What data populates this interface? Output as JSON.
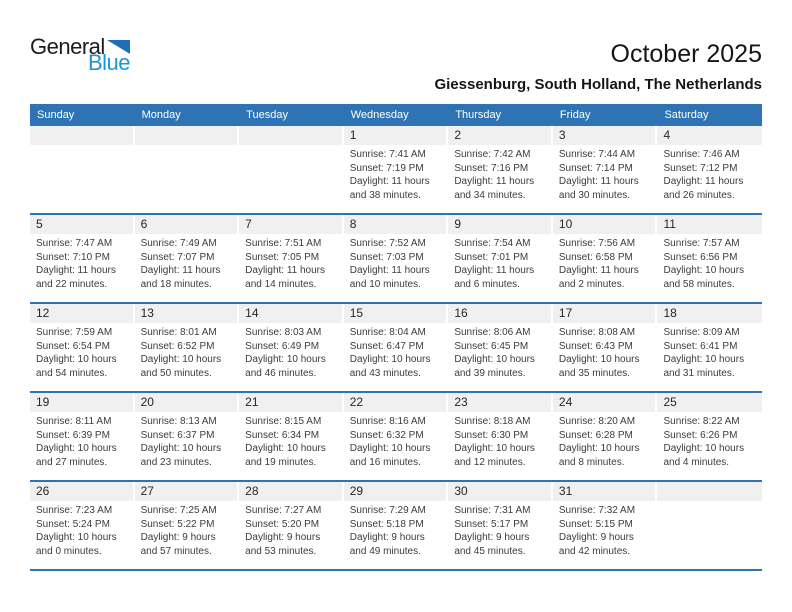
{
  "logo": {
    "part1": "General",
    "part2": "Blue"
  },
  "header": {
    "title": "October 2025",
    "subtitle": "Giessenburg, South Holland, The Netherlands"
  },
  "colors": {
    "header_blue": "#2E74B5",
    "row_border_blue": "#2E74B5",
    "band_gray": "#F0F0F0",
    "logo_blue": "#2095D3",
    "logo_triangle_blue": "#1F6FB5",
    "text_dark": "#3C3C3C"
  },
  "calendar": {
    "weekdays": [
      "Sunday",
      "Monday",
      "Tuesday",
      "Wednesday",
      "Thursday",
      "Friday",
      "Saturday"
    ],
    "weeks": [
      [
        {},
        {},
        {},
        {
          "day": "1",
          "lines": [
            "Sunrise: 7:41 AM",
            "Sunset: 7:19 PM",
            "Daylight: 11 hours",
            "and 38 minutes."
          ]
        },
        {
          "day": "2",
          "lines": [
            "Sunrise: 7:42 AM",
            "Sunset: 7:16 PM",
            "Daylight: 11 hours",
            "and 34 minutes."
          ]
        },
        {
          "day": "3",
          "lines": [
            "Sunrise: 7:44 AM",
            "Sunset: 7:14 PM",
            "Daylight: 11 hours",
            "and 30 minutes."
          ]
        },
        {
          "day": "4",
          "lines": [
            "Sunrise: 7:46 AM",
            "Sunset: 7:12 PM",
            "Daylight: 11 hours",
            "and 26 minutes."
          ]
        }
      ],
      [
        {
          "day": "5",
          "lines": [
            "Sunrise: 7:47 AM",
            "Sunset: 7:10 PM",
            "Daylight: 11 hours",
            "and 22 minutes."
          ]
        },
        {
          "day": "6",
          "lines": [
            "Sunrise: 7:49 AM",
            "Sunset: 7:07 PM",
            "Daylight: 11 hours",
            "and 18 minutes."
          ]
        },
        {
          "day": "7",
          "lines": [
            "Sunrise: 7:51 AM",
            "Sunset: 7:05 PM",
            "Daylight: 11 hours",
            "and 14 minutes."
          ]
        },
        {
          "day": "8",
          "lines": [
            "Sunrise: 7:52 AM",
            "Sunset: 7:03 PM",
            "Daylight: 11 hours",
            "and 10 minutes."
          ]
        },
        {
          "day": "9",
          "lines": [
            "Sunrise: 7:54 AM",
            "Sunset: 7:01 PM",
            "Daylight: 11 hours",
            "and 6 minutes."
          ]
        },
        {
          "day": "10",
          "lines": [
            "Sunrise: 7:56 AM",
            "Sunset: 6:58 PM",
            "Daylight: 11 hours",
            "and 2 minutes."
          ]
        },
        {
          "day": "11",
          "lines": [
            "Sunrise: 7:57 AM",
            "Sunset: 6:56 PM",
            "Daylight: 10 hours",
            "and 58 minutes."
          ]
        }
      ],
      [
        {
          "day": "12",
          "lines": [
            "Sunrise: 7:59 AM",
            "Sunset: 6:54 PM",
            "Daylight: 10 hours",
            "and 54 minutes."
          ]
        },
        {
          "day": "13",
          "lines": [
            "Sunrise: 8:01 AM",
            "Sunset: 6:52 PM",
            "Daylight: 10 hours",
            "and 50 minutes."
          ]
        },
        {
          "day": "14",
          "lines": [
            "Sunrise: 8:03 AM",
            "Sunset: 6:49 PM",
            "Daylight: 10 hours",
            "and 46 minutes."
          ]
        },
        {
          "day": "15",
          "lines": [
            "Sunrise: 8:04 AM",
            "Sunset: 6:47 PM",
            "Daylight: 10 hours",
            "and 43 minutes."
          ]
        },
        {
          "day": "16",
          "lines": [
            "Sunrise: 8:06 AM",
            "Sunset: 6:45 PM",
            "Daylight: 10 hours",
            "and 39 minutes."
          ]
        },
        {
          "day": "17",
          "lines": [
            "Sunrise: 8:08 AM",
            "Sunset: 6:43 PM",
            "Daylight: 10 hours",
            "and 35 minutes."
          ]
        },
        {
          "day": "18",
          "lines": [
            "Sunrise: 8:09 AM",
            "Sunset: 6:41 PM",
            "Daylight: 10 hours",
            "and 31 minutes."
          ]
        }
      ],
      [
        {
          "day": "19",
          "lines": [
            "Sunrise: 8:11 AM",
            "Sunset: 6:39 PM",
            "Daylight: 10 hours",
            "and 27 minutes."
          ]
        },
        {
          "day": "20",
          "lines": [
            "Sunrise: 8:13 AM",
            "Sunset: 6:37 PM",
            "Daylight: 10 hours",
            "and 23 minutes."
          ]
        },
        {
          "day": "21",
          "lines": [
            "Sunrise: 8:15 AM",
            "Sunset: 6:34 PM",
            "Daylight: 10 hours",
            "and 19 minutes."
          ]
        },
        {
          "day": "22",
          "lines": [
            "Sunrise: 8:16 AM",
            "Sunset: 6:32 PM",
            "Daylight: 10 hours",
            "and 16 minutes."
          ]
        },
        {
          "day": "23",
          "lines": [
            "Sunrise: 8:18 AM",
            "Sunset: 6:30 PM",
            "Daylight: 10 hours",
            "and 12 minutes."
          ]
        },
        {
          "day": "24",
          "lines": [
            "Sunrise: 8:20 AM",
            "Sunset: 6:28 PM",
            "Daylight: 10 hours",
            "and 8 minutes."
          ]
        },
        {
          "day": "25",
          "lines": [
            "Sunrise: 8:22 AM",
            "Sunset: 6:26 PM",
            "Daylight: 10 hours",
            "and 4 minutes."
          ]
        }
      ],
      [
        {
          "day": "26",
          "lines": [
            "Sunrise: 7:23 AM",
            "Sunset: 5:24 PM",
            "Daylight: 10 hours",
            "and 0 minutes."
          ]
        },
        {
          "day": "27",
          "lines": [
            "Sunrise: 7:25 AM",
            "Sunset: 5:22 PM",
            "Daylight: 9 hours",
            "and 57 minutes."
          ]
        },
        {
          "day": "28",
          "lines": [
            "Sunrise: 7:27 AM",
            "Sunset: 5:20 PM",
            "Daylight: 9 hours",
            "and 53 minutes."
          ]
        },
        {
          "day": "29",
          "lines": [
            "Sunrise: 7:29 AM",
            "Sunset: 5:18 PM",
            "Daylight: 9 hours",
            "and 49 minutes."
          ]
        },
        {
          "day": "30",
          "lines": [
            "Sunrise: 7:31 AM",
            "Sunset: 5:17 PM",
            "Daylight: 9 hours",
            "and 45 minutes."
          ]
        },
        {
          "day": "31",
          "lines": [
            "Sunrise: 7:32 AM",
            "Sunset: 5:15 PM",
            "Daylight: 9 hours",
            "and 42 minutes."
          ]
        },
        {}
      ]
    ]
  }
}
